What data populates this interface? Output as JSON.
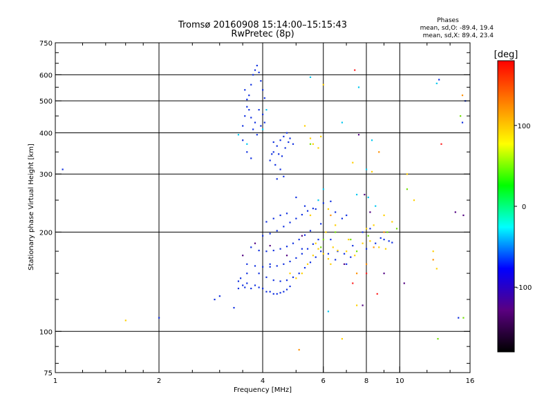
{
  "chart_data": {
    "type": "scatter",
    "title": "Tromsø 20160908 15:14:00–15:15:43",
    "subtitle": "RwPretec (8p)",
    "xlabel": "Frequency [MHz]",
    "ylabel": "Stationary phase Virtual Height [km]",
    "x_scale": "log",
    "y_scale": "log",
    "xlim": [
      1,
      16
    ],
    "ylim": [
      75,
      750
    ],
    "xticks": [
      1,
      2,
      4,
      6,
      8,
      10,
      16
    ],
    "yticks": [
      75,
      100,
      200,
      300,
      400,
      500,
      600,
      750
    ],
    "x_gridlines": [
      2,
      4,
      6,
      8,
      10
    ],
    "y_gridlines": [
      100,
      200,
      300,
      400,
      500,
      600
    ],
    "grid": true,
    "legend": {
      "title": "Phases",
      "lines": [
        "mean, sd,O: -89.4, 19.4",
        "mean, sd,X: 89.4, 23.4"
      ]
    },
    "colorbar": {
      "label": "[deg]",
      "range": [
        -180,
        180
      ],
      "ticks": [
        100,
        0,
        -100
      ],
      "colors": [
        "#000000",
        "#5a0080",
        "#0000ff",
        "#00ffff",
        "#00ff00",
        "#ffff00",
        "#ff8000",
        "#ff0000"
      ]
    },
    "series": [
      {
        "color": "#1030e0",
        "points": [
          [
            1.05,
            310
          ],
          [
            2.0,
            110
          ],
          [
            2.9,
            125
          ],
          [
            3.0,
            128
          ],
          [
            3.3,
            118
          ],
          [
            3.4,
            135
          ],
          [
            3.45,
            145
          ],
          [
            3.5,
            138
          ],
          [
            3.55,
            136
          ],
          [
            3.6,
            140
          ],
          [
            3.7,
            135
          ],
          [
            3.8,
            138
          ],
          [
            3.9,
            136
          ],
          [
            4.0,
            135
          ],
          [
            4.1,
            132
          ],
          [
            4.2,
            132
          ],
          [
            4.3,
            130
          ],
          [
            4.4,
            130
          ],
          [
            4.5,
            131
          ],
          [
            4.6,
            132
          ],
          [
            4.7,
            134
          ],
          [
            4.8,
            137
          ],
          [
            3.9,
            150
          ],
          [
            4.1,
            146
          ],
          [
            4.3,
            143
          ],
          [
            4.5,
            142
          ],
          [
            4.7,
            143
          ],
          [
            4.9,
            146
          ],
          [
            5.1,
            150
          ],
          [
            5.3,
            156
          ],
          [
            5.5,
            162
          ],
          [
            5.7,
            168
          ],
          [
            5.9,
            175
          ],
          [
            3.6,
            160
          ],
          [
            3.8,
            158
          ],
          [
            4.0,
            157
          ],
          [
            4.2,
            157
          ],
          [
            4.4,
            158
          ],
          [
            4.6,
            160
          ],
          [
            4.8,
            163
          ],
          [
            5.0,
            167
          ],
          [
            5.2,
            172
          ],
          [
            5.4,
            178
          ],
          [
            5.6,
            184
          ],
          [
            5.8,
            190
          ],
          [
            3.7,
            180
          ],
          [
            3.9,
            176
          ],
          [
            4.1,
            175
          ],
          [
            4.3,
            176
          ],
          [
            4.5,
            178
          ],
          [
            4.7,
            181
          ],
          [
            4.9,
            185
          ],
          [
            5.1,
            190
          ],
          [
            5.3,
            196
          ],
          [
            5.5,
            202
          ],
          [
            4.0,
            195
          ],
          [
            4.2,
            198
          ],
          [
            4.4,
            202
          ],
          [
            4.6,
            208
          ],
          [
            4.8,
            214
          ],
          [
            5.0,
            220
          ],
          [
            5.2,
            226
          ],
          [
            5.4,
            232
          ],
          [
            5.6,
            236
          ],
          [
            4.1,
            215
          ],
          [
            4.3,
            220
          ],
          [
            4.5,
            225
          ],
          [
            4.7,
            228
          ],
          [
            3.5,
            420
          ],
          [
            3.55,
            450
          ],
          [
            3.6,
            480
          ],
          [
            3.65,
            520
          ],
          [
            3.7,
            560
          ],
          [
            3.75,
            600
          ],
          [
            3.8,
            620
          ],
          [
            3.85,
            640
          ],
          [
            3.9,
            610
          ],
          [
            3.95,
            575
          ],
          [
            4.0,
            540
          ],
          [
            4.05,
            510
          ],
          [
            3.5,
            380
          ],
          [
            3.6,
            350
          ],
          [
            3.7,
            335
          ],
          [
            3.8,
            430
          ],
          [
            3.9,
            470
          ],
          [
            4.0,
            455
          ],
          [
            3.55,
            540
          ],
          [
            3.6,
            505
          ],
          [
            3.65,
            470
          ],
          [
            3.7,
            445
          ],
          [
            3.75,
            410
          ],
          [
            3.85,
            395
          ],
          [
            3.95,
            420
          ],
          [
            4.05,
            430
          ],
          [
            4.2,
            330
          ],
          [
            4.3,
            350
          ],
          [
            4.4,
            365
          ],
          [
            4.5,
            380
          ],
          [
            4.6,
            390
          ],
          [
            4.7,
            400
          ],
          [
            4.8,
            385
          ],
          [
            4.9,
            370
          ],
          [
            4.5,
            310
          ],
          [
            4.6,
            295
          ],
          [
            4.4,
            290
          ],
          [
            4.3,
            375
          ],
          [
            4.45,
            345
          ],
          [
            4.55,
            340
          ],
          [
            4.65,
            360
          ],
          [
            4.75,
            375
          ],
          [
            4.35,
            320
          ],
          [
            4.25,
            345
          ],
          [
            6.3,
            190
          ],
          [
            6.6,
            175
          ],
          [
            6.9,
            172
          ],
          [
            7.2,
            168
          ],
          [
            8.5,
            185
          ],
          [
            9.0,
            190
          ],
          [
            9.3,
            188
          ],
          [
            8.2,
            205
          ],
          [
            7.8,
            200
          ],
          [
            6.2,
            172
          ],
          [
            6.5,
            165
          ],
          [
            7.0,
            160
          ],
          [
            7.3,
            182
          ],
          [
            8.0,
            178
          ],
          [
            8.8,
            192
          ],
          [
            9.5,
            186
          ],
          [
            5.0,
            255
          ],
          [
            5.3,
            240
          ],
          [
            5.7,
            235
          ],
          [
            6.0,
            245
          ],
          [
            6.5,
            230
          ],
          [
            7.0,
            225
          ],
          [
            6.3,
            248
          ],
          [
            6.8,
            220
          ],
          [
            14.8,
            110
          ],
          [
            15.5,
            500
          ],
          [
            15.2,
            430
          ],
          [
            13.0,
            580
          ],
          [
            4.2,
            160
          ],
          [
            3.6,
            150
          ],
          [
            3.4,
            142
          ],
          [
            5.2,
            178
          ],
          [
            5.9,
            212
          ]
        ]
      },
      {
        "color": "#ffd000",
        "points": [
          [
            1.6,
            108
          ],
          [
            5.3,
            420
          ],
          [
            5.5,
            385
          ],
          [
            5.6,
            370
          ],
          [
            5.8,
            360
          ],
          [
            5.9,
            390
          ],
          [
            6.0,
            560
          ],
          [
            5.2,
            150
          ],
          [
            5.4,
            160
          ],
          [
            5.6,
            170
          ],
          [
            5.8,
            178
          ],
          [
            6.0,
            172
          ],
          [
            6.2,
            166
          ],
          [
            6.4,
            180
          ],
          [
            6.6,
            176
          ],
          [
            7.0,
            175
          ],
          [
            7.4,
            170
          ],
          [
            7.8,
            185
          ],
          [
            8.2,
            188
          ],
          [
            8.7,
            180
          ],
          [
            9.1,
            178
          ],
          [
            6.8,
            95
          ],
          [
            7.5,
            120
          ],
          [
            10.5,
            300
          ],
          [
            11.0,
            250
          ],
          [
            12.5,
            175
          ],
          [
            12.8,
            155
          ],
          [
            8.4,
            210
          ],
          [
            9.0,
            225
          ],
          [
            6.1,
            200
          ],
          [
            6.5,
            210
          ],
          [
            4.8,
            150
          ],
          [
            5.0,
            145
          ],
          [
            5.7,
            185
          ],
          [
            6.3,
            160
          ],
          [
            7.1,
            190
          ],
          [
            8.0,
            205
          ],
          [
            9.5,
            215
          ],
          [
            7.3,
            325
          ],
          [
            8.3,
            305
          ],
          [
            6.2,
            235
          ],
          [
            5.5,
            225
          ]
        ]
      },
      {
        "color": "#00c8f0",
        "points": [
          [
            3.4,
            395
          ],
          [
            3.6,
            370
          ],
          [
            4.0,
            410
          ],
          [
            4.1,
            470
          ],
          [
            5.5,
            590
          ],
          [
            6.2,
            115
          ],
          [
            7.6,
            550
          ],
          [
            8.1,
            255
          ],
          [
            8.5,
            240
          ],
          [
            8.3,
            380
          ],
          [
            8.0,
            310
          ],
          [
            7.5,
            260
          ],
          [
            6.8,
            430
          ],
          [
            6.0,
            270
          ],
          [
            5.8,
            250
          ],
          [
            12.8,
            565
          ]
        ]
      },
      {
        "color": "#70e000",
        "points": [
          [
            5.5,
            370
          ],
          [
            5.9,
            180
          ],
          [
            6.5,
            200
          ],
          [
            7.2,
            190
          ],
          [
            8.1,
            195
          ],
          [
            9.2,
            200
          ],
          [
            9.8,
            205
          ],
          [
            12.9,
            95
          ],
          [
            15.0,
            450
          ],
          [
            10.5,
            270
          ],
          [
            7.5,
            175
          ],
          [
            6.0,
            190
          ],
          [
            15.3,
            110
          ]
        ]
      },
      {
        "color": "#ff2020",
        "points": [
          [
            7.4,
            620
          ],
          [
            8.6,
            130
          ],
          [
            8.0,
            150
          ],
          [
            7.3,
            140
          ],
          [
            13.2,
            370
          ]
        ]
      },
      {
        "color": "#ff9000",
        "points": [
          [
            8.0,
            160
          ],
          [
            8.4,
            180
          ],
          [
            9.0,
            200
          ],
          [
            7.5,
            150
          ],
          [
            8.7,
            350
          ],
          [
            15.2,
            520
          ],
          [
            12.5,
            165
          ],
          [
            6.3,
            225
          ],
          [
            5.1,
            88
          ]
        ]
      },
      {
        "color": "#500080",
        "points": [
          [
            3.5,
            170
          ],
          [
            3.8,
            185
          ],
          [
            4.2,
            182
          ],
          [
            4.7,
            170
          ],
          [
            5.2,
            195
          ],
          [
            6.9,
            160
          ],
          [
            7.8,
            120
          ],
          [
            9.0,
            150
          ],
          [
            7.6,
            395
          ],
          [
            7.9,
            260
          ],
          [
            14.5,
            230
          ],
          [
            15.3,
            225
          ],
          [
            8.2,
            230
          ],
          [
            10.3,
            140
          ]
        ]
      }
    ]
  }
}
